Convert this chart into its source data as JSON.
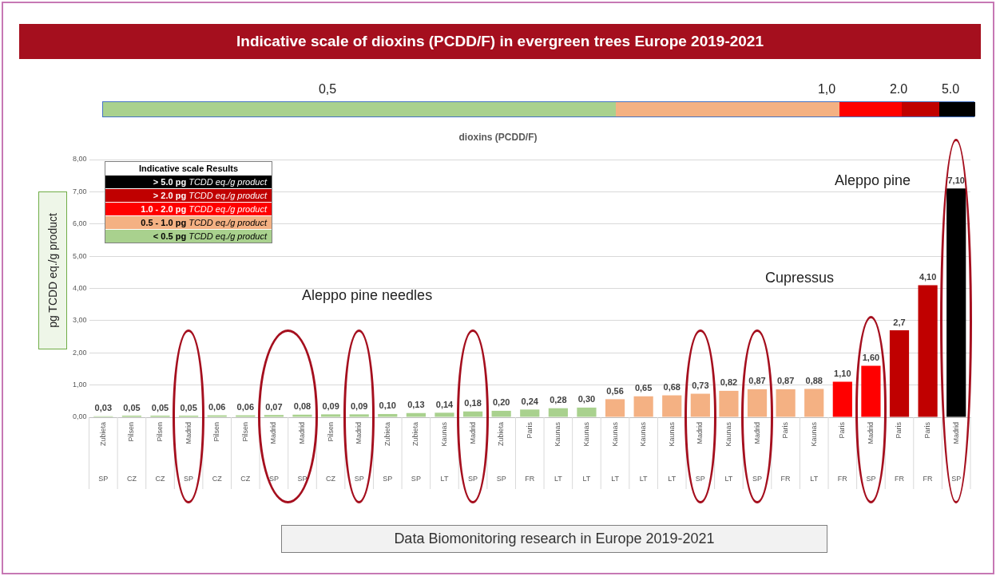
{
  "chart_data": {
    "type": "bar",
    "title": "Indicative scale of dioxins (PCDD/F) in evergreen trees Europe 2019-2021",
    "subtitle": "dioxins (PCDD/F)",
    "ylabel": "pg TCDD eq./g product",
    "legend_title": "Indicative scale Results",
    "categories": [
      "Zubieta\nSP",
      "Pilsen\nCZ",
      "Pilsen\nCZ",
      "Madrid\nSP",
      "Pilsen\nCZ",
      "Pilsen\nCZ",
      "Madrid\nSP",
      "Madrid\nSP",
      "Pilsen\nCZ",
      "Madrid\nSP",
      "Zubieta\nSP",
      "Zubieta\nSP",
      "Kaunas\nLT",
      "Madrid\nSP",
      "Zubieta\nSP",
      "Paris\nFR",
      "Kaunas\nLT",
      "Kaunas\nLT",
      "Kaunas\nLT",
      "Kaunas\nLT",
      "Kaunas\nLT",
      "Madrid\nSP",
      "Kaunas\nLT",
      "Madrid\nSP",
      "Paris\nFR",
      "Kaunas\nLT",
      "Paris\nFR",
      "Madrid\nSP",
      "Paris\nFR",
      "Paris\nFR",
      "Madrid\nSP"
    ],
    "series": [
      {
        "name": "> 5.0 pg TCDD eq./g product",
        "color": "#000000",
        "values": [
          null,
          null,
          null,
          null,
          null,
          null,
          null,
          null,
          null,
          null,
          null,
          null,
          null,
          null,
          null,
          null,
          null,
          null,
          null,
          null,
          null,
          null,
          null,
          null,
          null,
          null,
          null,
          null,
          null,
          null,
          7.1
        ],
        "value_labels": [
          null,
          null,
          null,
          null,
          null,
          null,
          null,
          null,
          null,
          null,
          null,
          null,
          null,
          null,
          null,
          null,
          null,
          null,
          null,
          null,
          null,
          null,
          null,
          null,
          null,
          null,
          null,
          null,
          null,
          null,
          "7,10"
        ]
      },
      {
        "name": "> 2.0 pg TCDD eq./g product",
        "color": "#c00000",
        "values": [
          null,
          null,
          null,
          null,
          null,
          null,
          null,
          null,
          null,
          null,
          null,
          null,
          null,
          null,
          null,
          null,
          null,
          null,
          null,
          null,
          null,
          null,
          null,
          null,
          null,
          null,
          null,
          null,
          2.7,
          4.1,
          null
        ],
        "value_labels": [
          null,
          null,
          null,
          null,
          null,
          null,
          null,
          null,
          null,
          null,
          null,
          null,
          null,
          null,
          null,
          null,
          null,
          null,
          null,
          null,
          null,
          null,
          null,
          null,
          null,
          null,
          null,
          null,
          "2,7",
          "4,10",
          null
        ]
      },
      {
        "name": "1.0 - 2.0 pg TCDD eq./g product",
        "color": "#ff0000",
        "values": [
          null,
          null,
          null,
          null,
          null,
          null,
          null,
          null,
          null,
          null,
          null,
          null,
          null,
          null,
          null,
          null,
          null,
          null,
          null,
          null,
          null,
          null,
          null,
          null,
          null,
          null,
          1.1,
          1.6,
          null,
          null,
          null
        ],
        "value_labels": [
          null,
          null,
          null,
          null,
          null,
          null,
          null,
          null,
          null,
          null,
          null,
          null,
          null,
          null,
          null,
          null,
          null,
          null,
          null,
          null,
          null,
          null,
          null,
          null,
          null,
          null,
          "1,10",
          "1,60",
          null,
          null,
          null
        ]
      },
      {
        "name": "0.5 - 1.0 pg TCDD eq./g product",
        "color": "#f4b183",
        "values": [
          null,
          null,
          null,
          null,
          null,
          null,
          null,
          null,
          null,
          null,
          null,
          null,
          null,
          null,
          null,
          null,
          null,
          null,
          0.56,
          0.65,
          0.68,
          0.73,
          0.82,
          0.87,
          0.87,
          0.88,
          null,
          null,
          null,
          null,
          null
        ],
        "value_labels": [
          null,
          null,
          null,
          null,
          null,
          null,
          null,
          null,
          null,
          null,
          null,
          null,
          null,
          null,
          null,
          null,
          null,
          null,
          "0,56",
          "0,65",
          "0,68",
          "0,73",
          "0,82",
          "0,87",
          "0,87",
          "0,88",
          null,
          null,
          null,
          null,
          null
        ]
      },
      {
        "name": "< 0.5 pg TCDD eq./g product",
        "color": "#a9d18e",
        "values": [
          0.03,
          0.05,
          0.05,
          0.05,
          0.06,
          0.06,
          0.07,
          0.08,
          0.09,
          0.09,
          0.1,
          0.13,
          0.14,
          0.18,
          0.2,
          0.24,
          0.28,
          0.3,
          null,
          null,
          null,
          null,
          null,
          null,
          null,
          null,
          null,
          null,
          null,
          null,
          null
        ],
        "value_labels": [
          "0,03",
          "0,05",
          "0,05",
          "0,05",
          "0,06",
          "0,06",
          "0,07",
          "0,08",
          "0,09",
          "0,09",
          "0,10",
          "0,13",
          "0,14",
          "0,18",
          "0,20",
          "0,24",
          "0,28",
          "0,30",
          null,
          null,
          null,
          null,
          null,
          null,
          null,
          null,
          null,
          null,
          null,
          null,
          null
        ]
      }
    ],
    "ylim": [
      0,
      8
    ],
    "yticks": [
      {
        "value": 0,
        "label": "0,00"
      },
      {
        "value": 1,
        "label": "1,00"
      },
      {
        "value": 2,
        "label": "2,00"
      },
      {
        "value": 3,
        "label": "3,00"
      },
      {
        "value": 4,
        "label": "4,00"
      },
      {
        "value": 5,
        "label": "5,00"
      },
      {
        "value": 6,
        "label": "6,00"
      },
      {
        "value": 7,
        "label": "7,00"
      },
      {
        "value": 8,
        "label": "8,00"
      }
    ],
    "grid": "y",
    "legend": "top left",
    "annotations": [
      "0,5",
      "1,0",
      "2.0",
      "5.0",
      "Aleppo pine needles",
      "Cupressus",
      "Aleppo pine",
      "Data Biomonitoring research in Europe 2019-2021"
    ]
  }
}
